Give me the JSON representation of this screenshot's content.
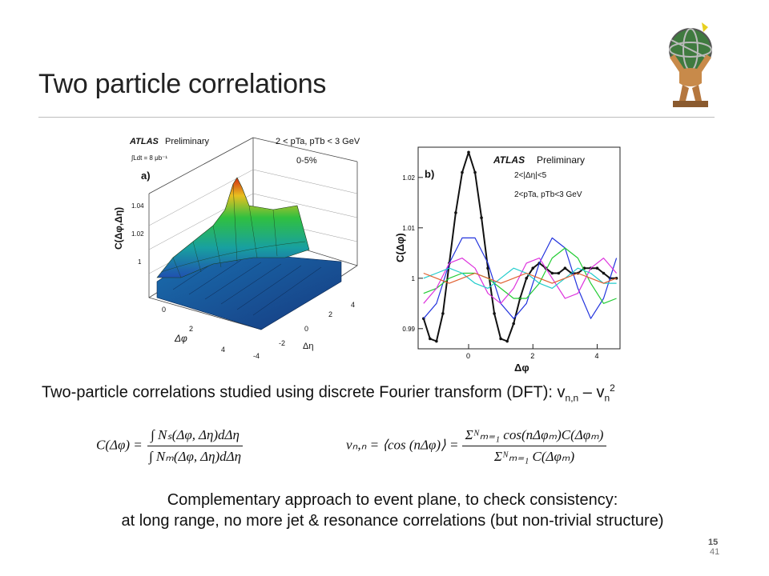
{
  "slide": {
    "title": "Two particle correlations",
    "page_marker": "15",
    "page_number": "41"
  },
  "figure_a": {
    "panel_label": "a)",
    "experiment": "ATLAS",
    "status": "Preliminary",
    "luminosity": "∫Ldt = 8 μb⁻¹",
    "pt_range": "2 < pTa, pTb < 3 GeV",
    "centrality": "0-5%",
    "z_axis_label": "C(Δφ,Δη)",
    "z_ticks": [
      "1.04",
      "1.02",
      "1"
    ],
    "phi_axis_label": "Δφ",
    "phi_ticks": [
      "0",
      "2",
      "4"
    ],
    "eta_axis_label": "Δη",
    "eta_ticks": [
      "-4",
      "-2",
      "0",
      "2",
      "4"
    ]
  },
  "chart_data": {
    "type": "line",
    "panel_label": "b)",
    "experiment": "ATLAS",
    "status": "Preliminary",
    "eta_gap": "2<|Δη|<5",
    "pt_range": "2<pTa, pTb<3 GeV",
    "xlabel": "Δφ",
    "ylabel": "C(Δφ)",
    "xlim": [
      -1.57,
      4.71
    ],
    "ylim": [
      0.986,
      1.026
    ],
    "x_ticks": [
      0,
      2,
      4
    ],
    "y_ticks": [
      0.99,
      1,
      1.01,
      1.02
    ],
    "y_tick_labels": [
      "0.99",
      "1",
      "1.01",
      "1.02"
    ],
    "series": [
      {
        "color": "#111111",
        "x": [
          -1.4,
          -1.2,
          -1.0,
          -0.8,
          -0.6,
          -0.4,
          -0.2,
          0.0,
          0.2,
          0.4,
          0.6,
          0.8,
          1.0,
          1.2,
          1.4,
          1.6,
          1.8,
          2.0,
          2.2,
          2.4,
          2.6,
          2.8,
          3.0,
          3.2,
          3.4,
          3.6,
          3.8,
          4.0,
          4.2,
          4.4,
          4.6
        ],
        "values": [
          0.992,
          0.988,
          0.9875,
          0.993,
          1.003,
          1.013,
          1.021,
          1.025,
          1.021,
          1.012,
          1.002,
          0.993,
          0.988,
          0.9875,
          0.991,
          0.996,
          1.0,
          1.002,
          1.003,
          1.002,
          1.001,
          1.001,
          1.002,
          1.001,
          1.001,
          1.002,
          1.002,
          1.002,
          1.001,
          1.0,
          1.0
        ]
      },
      {
        "color": "#2233dd",
        "x": [
          -1.4,
          -1.0,
          -0.6,
          -0.2,
          0.2,
          0.6,
          1.0,
          1.4,
          1.8,
          2.2,
          2.6,
          3.0,
          3.4,
          3.8,
          4.2,
          4.6
        ],
        "values": [
          0.992,
          0.995,
          1.003,
          1.008,
          1.008,
          1.003,
          0.995,
          0.992,
          0.995,
          1.003,
          1.008,
          1.006,
          0.998,
          0.992,
          0.996,
          1.004
        ]
      },
      {
        "color": "#22cc33",
        "x": [
          -1.4,
          -1.0,
          -0.6,
          -0.2,
          0.2,
          0.6,
          1.0,
          1.4,
          1.8,
          2.2,
          2.6,
          3.0,
          3.4,
          3.8,
          4.2,
          4.6
        ],
        "values": [
          0.997,
          0.998,
          1.0,
          1.001,
          1.001,
          1.0,
          0.998,
          0.996,
          0.996,
          0.999,
          1.004,
          1.006,
          1.004,
          0.999,
          0.995,
          0.996
        ]
      },
      {
        "color": "#dd33dd",
        "x": [
          -1.4,
          -1.0,
          -0.6,
          -0.2,
          0.2,
          0.6,
          1.0,
          1.4,
          1.8,
          2.2,
          2.6,
          3.0,
          3.4,
          3.8,
          4.2,
          4.6
        ],
        "values": [
          0.995,
          0.998,
          1.003,
          1.004,
          1.002,
          0.997,
          0.995,
          0.998,
          1.003,
          1.004,
          1.0,
          0.996,
          0.997,
          1.002,
          1.004,
          1.001
        ]
      },
      {
        "color": "#22cccc",
        "x": [
          -1.4,
          -1.0,
          -0.6,
          -0.2,
          0.2,
          0.6,
          1.0,
          1.4,
          1.8,
          2.2,
          2.6,
          3.0,
          3.4,
          3.8,
          4.2,
          4.6
        ],
        "values": [
          1.0,
          1.001,
          1.002,
          1.001,
          0.999,
          0.998,
          1.0,
          1.002,
          1.001,
          0.999,
          0.998,
          1.0,
          1.002,
          1.001,
          0.999,
          0.999
        ]
      },
      {
        "color": "#e06030",
        "x": [
          -1.4,
          -1.0,
          -0.6,
          -0.2,
          0.2,
          0.6,
          1.0,
          1.4,
          1.8,
          2.2,
          2.6,
          3.0,
          3.4,
          3.8,
          4.2,
          4.6
        ],
        "values": [
          1.001,
          1.0,
          0.999,
          1.0,
          1.001,
          1.0,
          0.999,
          1.0,
          1.001,
          1.0,
          0.999,
          1.0,
          1.001,
          1.0,
          0.999,
          1.0
        ]
      }
    ]
  },
  "text": {
    "caption_main": "Two-particle correlations studied using discrete Fourier transform (DFT): v",
    "caption_sub_nn": "n,n",
    "caption_dash": " – v",
    "caption_sub_n": "n",
    "caption_sup": "2",
    "note_line1": "Complementary approach to event plane, to check consistency:",
    "note_line2": "at long range, no more jet & resonance correlations (but non-trivial structure)"
  },
  "equations": {
    "c_lhs": "C(Δφ) =",
    "c_num": "∫ Nₛ(Δφ, Δη)dΔη",
    "c_den": "∫ Nₘ(Δφ, Δη)dΔη",
    "v_lhs": "vₙ,ₙ = ⟨cos (nΔφ)⟩ =",
    "v_num": "Σᴺₘ₌₁ cos(nΔφₘ)C(Δφₘ)",
    "v_den": "Σᴺₘ₌₁ C(Δφₘ)"
  },
  "colors": {
    "accent_rule": "#bdbdbd",
    "surface_peak": "#d42a10",
    "surface_ridge": "#20b040",
    "surface_base": "#1a6fa8"
  }
}
